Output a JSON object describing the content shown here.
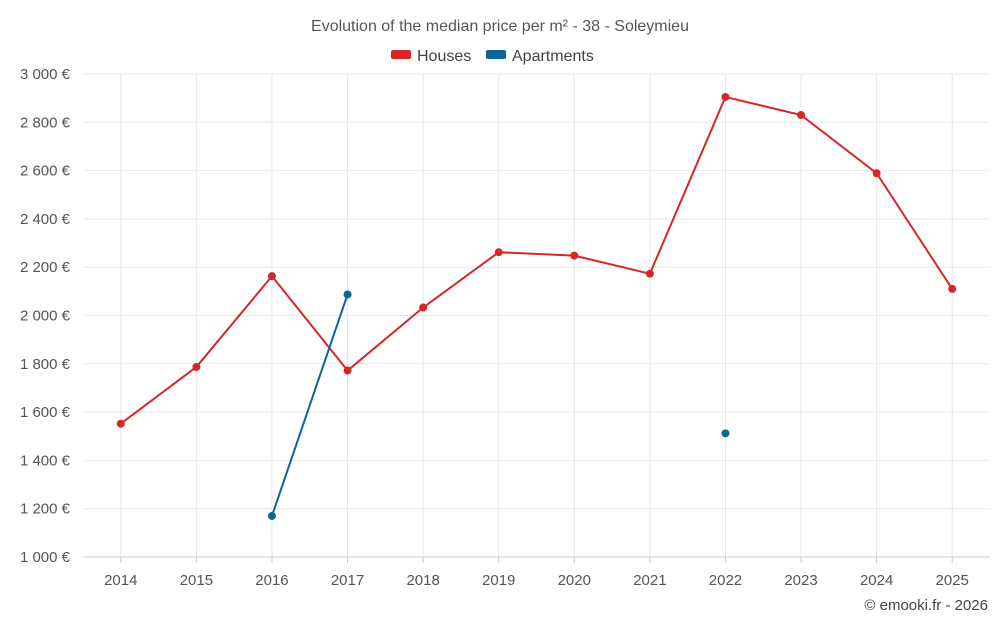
{
  "chart_data": {
    "type": "line",
    "title": "Evolution of the median price per m² - 38 - Soleymieu",
    "xlabel": "",
    "ylabel": "",
    "categories": [
      "2014",
      "2015",
      "2016",
      "2017",
      "2018",
      "2019",
      "2020",
      "2021",
      "2022",
      "2023",
      "2024",
      "2025"
    ],
    "ylim": [
      1000,
      3000
    ],
    "yticks": [
      1000,
      1200,
      1400,
      1600,
      1800,
      2000,
      2200,
      2400,
      2600,
      2800,
      3000
    ],
    "ytick_labels": [
      "1 000 €",
      "1 200 €",
      "1 400 €",
      "1 600 €",
      "1 800 €",
      "2 000 €",
      "2 200 €",
      "2 400 €",
      "2 600 €",
      "2 800 €",
      "3 000 €"
    ],
    "grid": true,
    "legend_position": "top-center",
    "series": [
      {
        "name": "Houses",
        "color": "#d62728",
        "values": [
          1552,
          1787,
          2163,
          1772,
          2033,
          2262,
          2248,
          2173,
          2905,
          2830,
          2589,
          2110
        ]
      },
      {
        "name": "Apartments",
        "color": "#0b6696",
        "values": [
          null,
          null,
          1170,
          2087,
          null,
          null,
          null,
          null,
          1512,
          null,
          null,
          null
        ]
      }
    ]
  },
  "credit": "© emooki.fr - 2026"
}
